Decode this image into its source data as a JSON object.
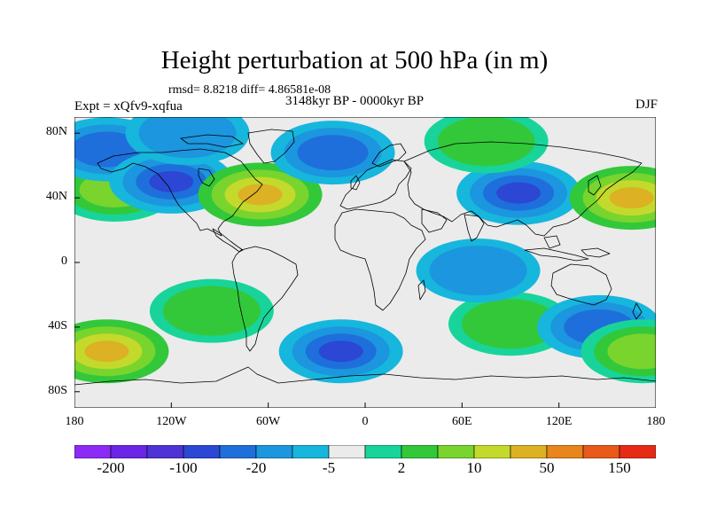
{
  "title": "Height perturbation at 500 hPa (in m)",
  "stats": "rmsd= 8.8218 diff= 4.86581e-08",
  "left_label": "Expt = xQfv9-xqfua",
  "center_label": "3148kyr BP - 0000kyr BP",
  "right_label": "DJF",
  "map": {
    "projection": "cylindrical equidistant",
    "lon_range": [
      -180,
      180
    ],
    "lat_range": [
      -90,
      90
    ],
    "x_ticks": [
      {
        "lon": -180,
        "label": "180"
      },
      {
        "lon": -120,
        "label": "120W"
      },
      {
        "lon": -60,
        "label": "60W"
      },
      {
        "lon": 0,
        "label": "0"
      },
      {
        "lon": 60,
        "label": "60E"
      },
      {
        "lon": 120,
        "label": "120E"
      },
      {
        "lon": 180,
        "label": "180"
      }
    ],
    "y_ticks": [
      {
        "lat": 80,
        "label": "80N"
      },
      {
        "lat": 40,
        "label": "40N"
      },
      {
        "lat": 0,
        "label": "0"
      },
      {
        "lat": -40,
        "label": "40S"
      },
      {
        "lat": -80,
        "label": "80S"
      }
    ],
    "background_color": "#ebebeb",
    "coastline_color": "#000000",
    "anomaly_centres": [
      {
        "lon": -155,
        "lat": 45,
        "value": 25,
        "sign": "positive"
      },
      {
        "lon": -160,
        "lat": 70,
        "value": -15,
        "sign": "negative"
      },
      {
        "lon": -120,
        "lat": 50,
        "value": -30,
        "sign": "negative"
      },
      {
        "lon": -110,
        "lat": 80,
        "value": -10,
        "sign": "negative"
      },
      {
        "lon": -65,
        "lat": 42,
        "value": 30,
        "sign": "positive"
      },
      {
        "lon": -20,
        "lat": 68,
        "value": -20,
        "sign": "negative"
      },
      {
        "lon": 95,
        "lat": 43,
        "value": -40,
        "sign": "negative"
      },
      {
        "lon": 75,
        "lat": 75,
        "value": 10,
        "sign": "positive"
      },
      {
        "lon": 165,
        "lat": 40,
        "value": 35,
        "sign": "positive"
      },
      {
        "lon": -160,
        "lat": -55,
        "value": 30,
        "sign": "positive"
      },
      {
        "lon": -95,
        "lat": -30,
        "value": 10,
        "sign": "positive"
      },
      {
        "lon": -15,
        "lat": -55,
        "value": -30,
        "sign": "negative"
      },
      {
        "lon": 90,
        "lat": -38,
        "value": 12,
        "sign": "positive"
      },
      {
        "lon": 145,
        "lat": -40,
        "value": -15,
        "sign": "negative"
      },
      {
        "lon": 172,
        "lat": -55,
        "value": 25,
        "sign": "positive"
      },
      {
        "lon": 70,
        "lat": -5,
        "value": -5,
        "sign": "negative"
      }
    ]
  },
  "colorbar": {
    "colors": [
      "#8c2bf5",
      "#6a25e6",
      "#4f33d6",
      "#2b47d4",
      "#1e6fdb",
      "#1c96de",
      "#17b6dd",
      "#ebebeb",
      "#18d49a",
      "#32c83a",
      "#79d42e",
      "#c3da2c",
      "#dcb124",
      "#e8851c",
      "#e8591a",
      "#e62a16"
    ],
    "labels": [
      {
        "index": 1,
        "text": "-200"
      },
      {
        "index": 3,
        "text": "-100"
      },
      {
        "index": 5,
        "text": "-20"
      },
      {
        "index": 7,
        "text": "-5"
      },
      {
        "index": 9,
        "text": "2"
      },
      {
        "index": 11,
        "text": "10"
      },
      {
        "index": 13,
        "text": "50"
      },
      {
        "index": 15,
        "text": "150"
      }
    ]
  }
}
